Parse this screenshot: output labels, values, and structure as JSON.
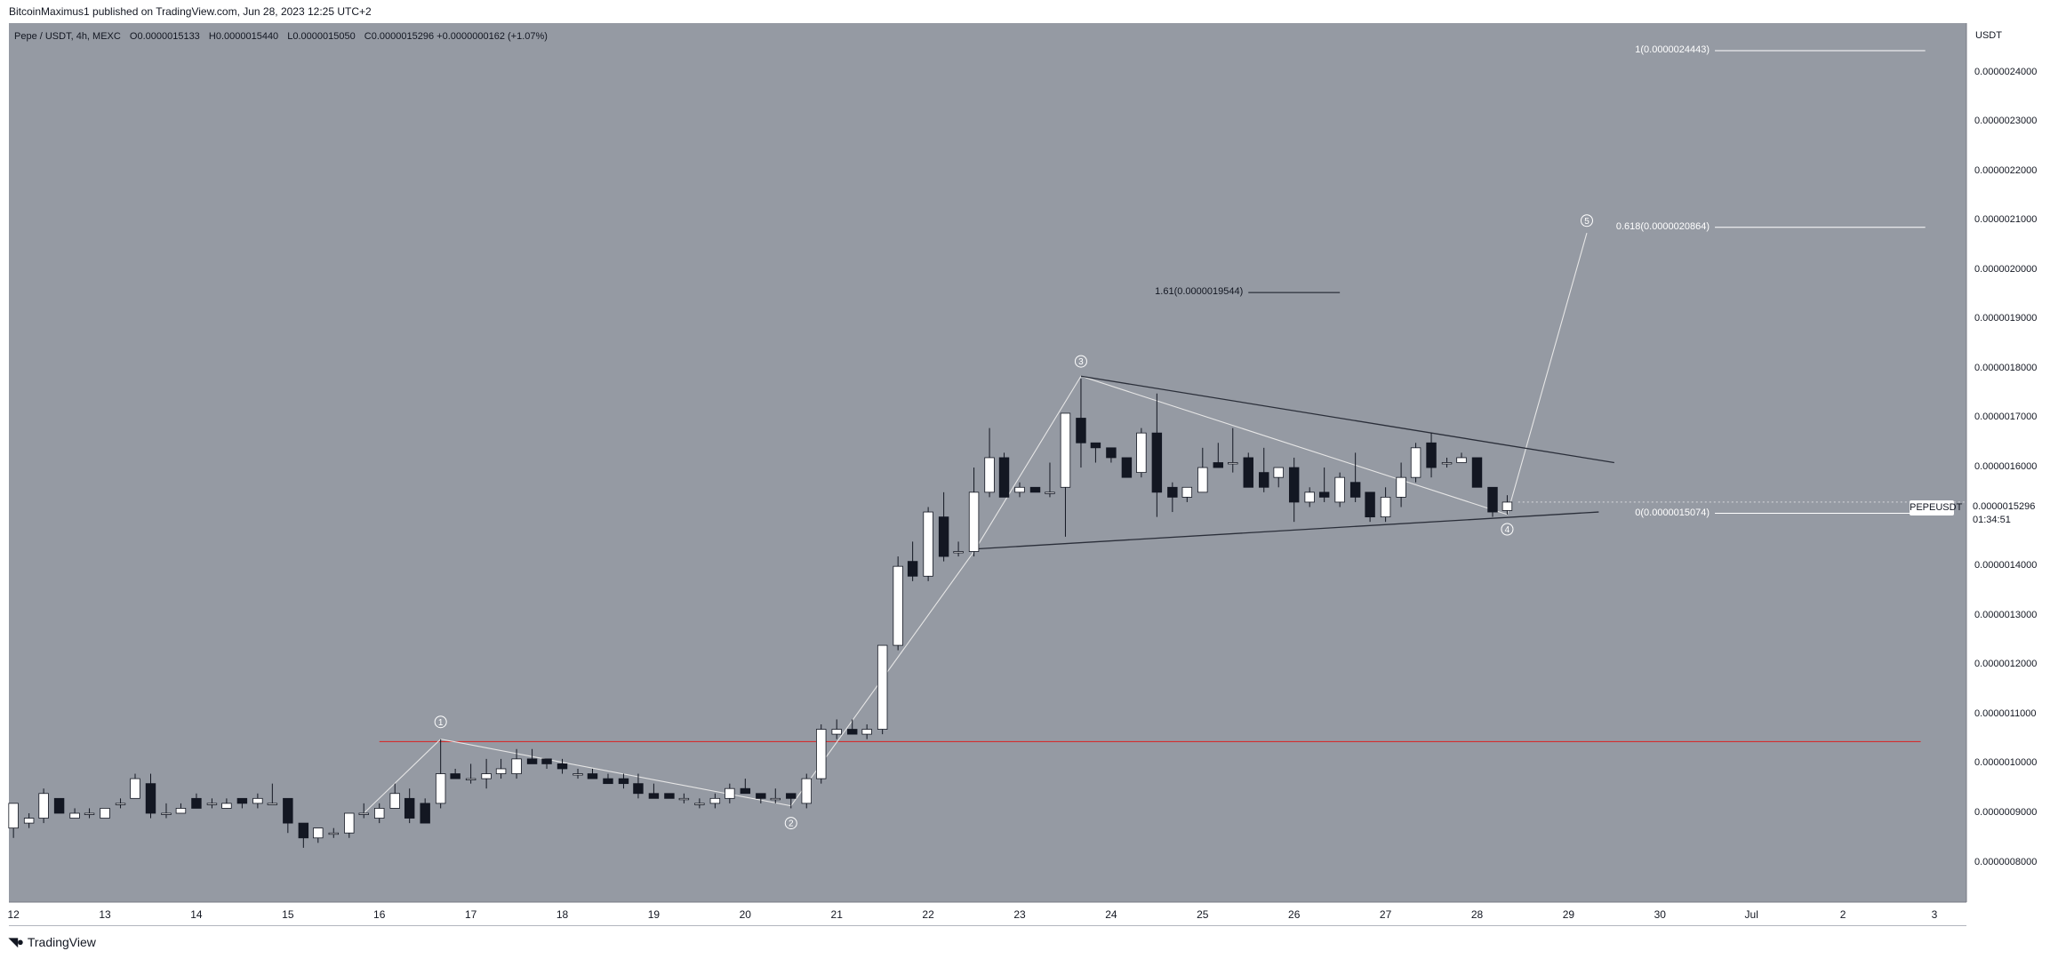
{
  "publisher_line": "BitcoinMaximus1 published on TradingView.com, Jun 28, 2023 12:25 UTC+2",
  "footer_brand": "TradingView",
  "legend": {
    "pair": "Pepe / USDT, 4h, MEXC",
    "open_key": "O",
    "open": "0.0000015133",
    "high_key": "H",
    "high": "0.0000015440",
    "low_key": "L",
    "low": "0.0000015050",
    "close_key": "C",
    "close": "0.0000015296",
    "change": "+0.0000000162 (+1.07%)"
  },
  "price_axis_unit": "USDT",
  "symbol_tag": "PEPEUSDT",
  "last_price": "0.0000015296",
  "countdown": "01:34:51",
  "colors": {
    "pane": "#959aa3",
    "bull": "#ffffff",
    "bear": "#131722",
    "support_line": "#d32f2f",
    "wedge": "#2a2e39",
    "wave": "#e6e6e6"
  },
  "chart_data": {
    "type": "candlestick",
    "timeframe": "4h",
    "y_axis": {
      "ticks": [
        "0.0000024000",
        "0.0000023000",
        "0.0000022000",
        "0.0000021000",
        "0.0000020000",
        "0.0000019000",
        "0.0000018000",
        "0.0000017000",
        "0.0000016000",
        "0.0000015000",
        "0.0000014000",
        "0.0000013000",
        "0.0000012000",
        "0.0000011000",
        "0.0000010000",
        "0.0000009000",
        "0.0000008000"
      ],
      "tick_values": [
        24,
        23,
        22,
        21,
        20,
        19,
        18,
        17,
        16,
        15,
        14,
        13,
        12,
        11,
        10,
        9,
        8
      ],
      "scale": 1e-07,
      "range": [
        7.2,
        25.0
      ]
    },
    "x_axis": {
      "ticks": [
        "12",
        "13",
        "14",
        "15",
        "16",
        "17",
        "18",
        "19",
        "20",
        "21",
        "22",
        "23",
        "24",
        "25",
        "26",
        "27",
        "28",
        "29",
        "30",
        "Jul",
        "2",
        "3"
      ],
      "tick_days": [
        12,
        13,
        14,
        15,
        16,
        17,
        18,
        19,
        20,
        21,
        22,
        23,
        24,
        25,
        26,
        27,
        28,
        29,
        30,
        31,
        32,
        33
      ],
      "range_days": [
        11.95,
        33.35
      ]
    },
    "candles": [
      [
        12.0,
        8.7,
        9.2,
        8.5,
        9.2
      ],
      [
        12.17,
        8.8,
        9.0,
        8.7,
        8.9
      ],
      [
        12.33,
        8.9,
        9.5,
        8.8,
        9.4
      ],
      [
        12.5,
        9.3,
        9.3,
        9.0,
        9.0
      ],
      [
        12.67,
        8.9,
        9.1,
        8.9,
        9.0
      ],
      [
        12.83,
        9.0,
        9.1,
        8.9,
        9.0
      ],
      [
        13.0,
        8.9,
        9.1,
        8.9,
        9.1
      ],
      [
        13.17,
        9.2,
        9.3,
        9.1,
        9.2
      ],
      [
        13.33,
        9.3,
        9.8,
        9.3,
        9.7
      ],
      [
        13.5,
        9.6,
        9.8,
        8.9,
        9.0
      ],
      [
        13.67,
        9.0,
        9.2,
        8.9,
        9.0
      ],
      [
        13.83,
        9.0,
        9.2,
        9.0,
        9.1
      ],
      [
        14.0,
        9.3,
        9.4,
        9.1,
        9.1
      ],
      [
        14.17,
        9.2,
        9.3,
        9.1,
        9.2
      ],
      [
        14.33,
        9.1,
        9.3,
        9.1,
        9.2
      ],
      [
        14.5,
        9.3,
        9.3,
        9.1,
        9.2
      ],
      [
        14.67,
        9.2,
        9.4,
        9.1,
        9.3
      ],
      [
        14.83,
        9.2,
        9.6,
        9.2,
        9.2
      ],
      [
        15.0,
        9.3,
        9.3,
        8.6,
        8.8
      ],
      [
        15.17,
        8.8,
        8.8,
        8.3,
        8.5
      ],
      [
        15.33,
        8.5,
        8.7,
        8.4,
        8.7
      ],
      [
        15.5,
        8.6,
        8.7,
        8.5,
        8.6
      ],
      [
        15.67,
        8.6,
        9.0,
        8.5,
        9.0
      ],
      [
        15.83,
        9.0,
        9.2,
        8.9,
        9.0
      ],
      [
        16.0,
        8.9,
        9.2,
        8.8,
        9.1
      ],
      [
        16.17,
        9.1,
        9.6,
        9.1,
        9.4
      ],
      [
        16.33,
        9.3,
        9.5,
        8.8,
        8.9
      ],
      [
        16.5,
        9.2,
        9.3,
        8.8,
        8.8
      ],
      [
        16.67,
        9.2,
        10.5,
        9.1,
        9.8
      ],
      [
        16.83,
        9.8,
        9.9,
        9.7,
        9.7
      ],
      [
        17.0,
        9.7,
        10.0,
        9.6,
        9.7
      ],
      [
        17.17,
        9.7,
        10.1,
        9.5,
        9.8
      ],
      [
        17.33,
        9.8,
        10.1,
        9.7,
        9.9
      ],
      [
        17.5,
        9.8,
        10.3,
        9.7,
        10.1
      ],
      [
        17.67,
        10.1,
        10.3,
        10.0,
        10.0
      ],
      [
        17.83,
        10.1,
        10.1,
        9.9,
        10.0
      ],
      [
        18.0,
        10.0,
        10.1,
        9.8,
        9.9
      ],
      [
        18.17,
        9.8,
        9.9,
        9.7,
        9.8
      ],
      [
        18.33,
        9.8,
        9.9,
        9.7,
        9.7
      ],
      [
        18.5,
        9.7,
        9.8,
        9.6,
        9.6
      ],
      [
        18.67,
        9.7,
        9.8,
        9.5,
        9.6
      ],
      [
        18.83,
        9.6,
        9.8,
        9.3,
        9.4
      ],
      [
        19.0,
        9.4,
        9.6,
        9.3,
        9.3
      ],
      [
        19.17,
        9.4,
        9.4,
        9.3,
        9.3
      ],
      [
        19.33,
        9.3,
        9.4,
        9.2,
        9.3
      ],
      [
        19.5,
        9.2,
        9.3,
        9.1,
        9.2
      ],
      [
        19.67,
        9.2,
        9.4,
        9.1,
        9.3
      ],
      [
        19.83,
        9.3,
        9.6,
        9.2,
        9.5
      ],
      [
        20.0,
        9.5,
        9.7,
        9.4,
        9.4
      ],
      [
        20.17,
        9.4,
        9.4,
        9.2,
        9.3
      ],
      [
        20.33,
        9.3,
        9.5,
        9.2,
        9.3
      ],
      [
        20.5,
        9.4,
        9.4,
        9.1,
        9.3
      ],
      [
        20.67,
        9.2,
        9.8,
        9.1,
        9.7
      ],
      [
        20.83,
        9.7,
        10.8,
        9.6,
        10.7
      ],
      [
        21.0,
        10.6,
        10.9,
        10.5,
        10.7
      ],
      [
        21.17,
        10.7,
        10.9,
        10.6,
        10.6
      ],
      [
        21.33,
        10.6,
        10.8,
        10.5,
        10.7
      ],
      [
        21.5,
        10.7,
        12.4,
        10.6,
        12.4
      ],
      [
        21.67,
        12.4,
        14.2,
        12.3,
        14.0
      ],
      [
        21.83,
        14.1,
        14.5,
        13.7,
        13.8
      ],
      [
        22.0,
        13.8,
        15.2,
        13.7,
        15.1
      ],
      [
        22.17,
        15.0,
        15.5,
        14.1,
        14.2
      ],
      [
        22.33,
        14.3,
        14.5,
        14.2,
        14.3
      ],
      [
        22.5,
        14.3,
        16.0,
        14.2,
        15.5
      ],
      [
        22.67,
        15.5,
        16.8,
        15.4,
        16.2
      ],
      [
        22.83,
        16.2,
        16.3,
        15.4,
        15.4
      ],
      [
        23.0,
        15.5,
        15.7,
        15.4,
        15.6
      ],
      [
        23.17,
        15.6,
        15.6,
        15.5,
        15.5
      ],
      [
        23.33,
        15.5,
        16.1,
        15.4,
        15.5
      ],
      [
        23.5,
        15.6,
        17.1,
        14.6,
        17.1
      ],
      [
        23.67,
        17.0,
        17.8,
        16.0,
        16.5
      ],
      [
        23.83,
        16.5,
        16.5,
        16.1,
        16.4
      ],
      [
        24.0,
        16.4,
        16.4,
        16.1,
        16.2
      ],
      [
        24.17,
        16.2,
        16.2,
        15.8,
        15.8
      ],
      [
        24.33,
        15.9,
        16.8,
        15.8,
        16.7
      ],
      [
        24.5,
        16.7,
        17.5,
        15.0,
        15.5
      ],
      [
        24.67,
        15.6,
        15.7,
        15.1,
        15.4
      ],
      [
        24.83,
        15.4,
        15.6,
        15.3,
        15.6
      ],
      [
        25.0,
        15.5,
        16.4,
        15.5,
        16.0
      ],
      [
        25.17,
        16.1,
        16.5,
        16.0,
        16.0
      ],
      [
        25.33,
        16.1,
        16.8,
        15.9,
        16.1
      ],
      [
        25.5,
        16.2,
        16.3,
        15.6,
        15.6
      ],
      [
        25.67,
        15.9,
        16.4,
        15.5,
        15.6
      ],
      [
        25.83,
        15.8,
        16.0,
        15.6,
        16.0
      ],
      [
        26.0,
        16.0,
        16.2,
        14.9,
        15.3
      ],
      [
        26.17,
        15.3,
        15.6,
        15.2,
        15.5
      ],
      [
        26.33,
        15.5,
        16.0,
        15.3,
        15.4
      ],
      [
        26.5,
        15.3,
        15.9,
        15.2,
        15.8
      ],
      [
        26.67,
        15.7,
        16.3,
        15.3,
        15.4
      ],
      [
        26.83,
        15.5,
        15.5,
        14.9,
        15.0
      ],
      [
        27.0,
        15.0,
        15.6,
        14.9,
        15.4
      ],
      [
        27.17,
        15.4,
        16.1,
        15.2,
        15.8
      ],
      [
        27.33,
        15.8,
        16.5,
        15.7,
        16.4
      ],
      [
        27.5,
        16.5,
        16.7,
        15.8,
        16.0
      ],
      [
        27.67,
        16.1,
        16.2,
        16.0,
        16.1
      ],
      [
        27.83,
        16.1,
        16.3,
        16.1,
        16.2
      ],
      [
        28.0,
        16.2,
        16.2,
        15.6,
        15.6
      ],
      [
        28.17,
        15.6,
        15.6,
        15.0,
        15.1
      ],
      [
        28.33,
        15.13,
        15.44,
        15.05,
        15.3
      ]
    ],
    "support_level": 10.45,
    "wedge_upper": [
      [
        23.67,
        17.85
      ],
      [
        29.5,
        16.1
      ]
    ],
    "wedge_lower": [
      [
        22.5,
        14.35
      ],
      [
        29.33,
        15.1
      ]
    ],
    "wave_path": [
      [
        15.83,
        9.0
      ],
      [
        16.67,
        10.5
      ],
      [
        20.5,
        9.15
      ],
      [
        22.5,
        14.3
      ],
      [
        23.67,
        17.85
      ],
      [
        28.33,
        15.05
      ],
      [
        29.2,
        20.75
      ]
    ],
    "wave_labels": [
      {
        "n": "1",
        "day": 16.67,
        "v": 10.85
      },
      {
        "n": "2",
        "day": 20.5,
        "v": 8.8
      },
      {
        "n": "3",
        "day": 23.67,
        "v": 18.15
      },
      {
        "n": "4",
        "day": 28.33,
        "v": 14.75
      },
      {
        "n": "5",
        "day": 29.2,
        "v": 21.0
      }
    ],
    "fib_levels": [
      {
        "label": "1(0.0000024443)",
        "value": 24.443,
        "x_start_day": 30.6,
        "x_end_day": 32.9
      },
      {
        "label": "0.618(0.0000020864)",
        "value": 20.864,
        "x_start_day": 30.6,
        "x_end_day": 32.9
      },
      {
        "label": "0(0.0000015074)",
        "value": 15.074,
        "x_start_day": 30.6,
        "x_end_day": 32.9
      }
    ],
    "extension": {
      "label": "1.61(0.0000019544)",
      "value": 19.544,
      "x_start_day": 25.5,
      "x_end_day": 26.5
    }
  }
}
